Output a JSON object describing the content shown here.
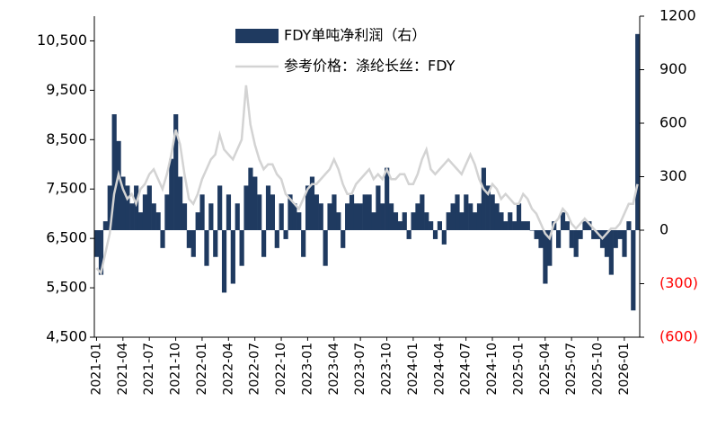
{
  "chart_data": {
    "type": "bar_line",
    "categories": [
      "2021-01",
      null,
      null,
      null,
      null,
      null,
      "2021-04",
      null,
      null,
      null,
      null,
      null,
      "2021-07",
      null,
      null,
      null,
      null,
      null,
      "2021-10",
      null,
      null,
      null,
      null,
      null,
      "2022-01",
      null,
      null,
      null,
      null,
      null,
      "2022-04",
      null,
      null,
      null,
      null,
      null,
      "2022-07",
      null,
      null,
      null,
      null,
      null,
      "2022-10",
      null,
      null,
      null,
      null,
      null,
      "2023-01",
      null,
      null,
      null,
      null,
      null,
      "2023-04",
      null,
      null,
      null,
      null,
      null,
      "2023-07",
      null,
      null,
      null,
      null,
      null,
      "2023-10",
      null,
      null,
      null,
      null,
      null,
      "2024-01",
      null,
      null,
      null,
      null,
      null,
      "2024-04",
      null,
      null,
      null,
      null,
      null,
      "2024-07",
      null,
      null,
      null,
      null,
      null,
      "2024-10",
      null,
      null,
      null,
      null,
      null,
      "2025-01",
      null,
      null,
      null,
      null,
      null,
      "2025-04",
      null,
      null,
      null,
      null,
      null,
      "2025-07",
      null,
      null,
      null,
      null,
      null,
      "2025-10",
      null,
      null,
      null,
      null,
      null,
      "2026-01",
      null,
      null,
      null
    ],
    "series": [
      {
        "name": "FDY单吨净利润（右）",
        "kind": "bar",
        "axis": "y2",
        "color": "#1f3a60",
        "values": [
          -150,
          -250,
          50,
          250,
          650,
          500,
          300,
          250,
          150,
          250,
          100,
          200,
          250,
          150,
          100,
          -100,
          200,
          400,
          650,
          300,
          150,
          -100,
          -150,
          100,
          200,
          -200,
          150,
          -150,
          250,
          -350,
          200,
          -300,
          150,
          -200,
          250,
          350,
          300,
          200,
          -150,
          250,
          200,
          -100,
          150,
          -50,
          200,
          150,
          100,
          -150,
          250,
          300,
          200,
          150,
          -200,
          150,
          200,
          100,
          -100,
          150,
          200,
          150,
          150,
          200,
          200,
          100,
          250,
          150,
          350,
          150,
          100,
          50,
          100,
          -50,
          100,
          150,
          200,
          100,
          50,
          -50,
          50,
          -80,
          100,
          150,
          200,
          100,
          200,
          150,
          100,
          150,
          350,
          250,
          200,
          150,
          100,
          50,
          100,
          50,
          150,
          50,
          50,
          0,
          -50,
          -100,
          -300,
          -200,
          50,
          -100,
          100,
          50,
          -100,
          -150,
          -50,
          50,
          50,
          -50,
          -50,
          -100,
          -150,
          -250,
          -100,
          -50,
          -150,
          50,
          -450,
          1100
        ]
      },
      {
        "name": "参考价格：涤纶长丝：FDY",
        "kind": "line",
        "axis": "y",
        "color": "#d3d3d3",
        "values": [
          5900,
          5800,
          6200,
          6600,
          7400,
          7800,
          7500,
          7300,
          7400,
          7200,
          7500,
          7600,
          7800,
          7900,
          7700,
          7500,
          7800,
          8200,
          8700,
          8400,
          7800,
          7300,
          7200,
          7400,
          7700,
          7900,
          8100,
          8200,
          8600,
          8300,
          8200,
          8100,
          8300,
          8500,
          9600,
          8800,
          8400,
          8100,
          7900,
          8000,
          8000,
          7800,
          7700,
          7400,
          7300,
          7200,
          7100,
          7300,
          7500,
          7600,
          7600,
          7700,
          7800,
          7900,
          8100,
          7900,
          7600,
          7400,
          7400,
          7600,
          7700,
          7800,
          7900,
          7700,
          7800,
          7700,
          7900,
          7700,
          7700,
          7800,
          7800,
          7600,
          7600,
          7800,
          8100,
          8300,
          7900,
          7800,
          7900,
          8000,
          8100,
          8000,
          7900,
          7800,
          8000,
          8200,
          8000,
          7700,
          7500,
          7400,
          7600,
          7500,
          7300,
          7400,
          7300,
          7200,
          7200,
          7400,
          7300,
          7100,
          7000,
          6800,
          6600,
          6500,
          6800,
          6900,
          7100,
          7000,
          6800,
          6700,
          6800,
          6900,
          6800,
          6700,
          6600,
          6500,
          6600,
          6700,
          6700,
          6800,
          7000,
          7200,
          7200,
          7600
        ]
      }
    ],
    "ylim": [
      4500,
      11000
    ],
    "yticks": [
      {
        "value": 4500,
        "label": "4,500"
      },
      {
        "value": 5500,
        "label": "5,500"
      },
      {
        "value": 6500,
        "label": "6,500"
      },
      {
        "value": 7500,
        "label": "7,500"
      },
      {
        "value": 8500,
        "label": "8,500"
      },
      {
        "value": 9500,
        "label": "9,500"
      },
      {
        "value": 10500,
        "label": "10,500"
      }
    ],
    "y2lim": [
      -600,
      1200
    ],
    "y2ticks": [
      {
        "value": -600,
        "label": "(600)"
      },
      {
        "value": -300,
        "label": "(300)"
      },
      0,
      300,
      600,
      900,
      1200
    ],
    "negative_tick_color": "#ff0000",
    "legend": "top"
  }
}
